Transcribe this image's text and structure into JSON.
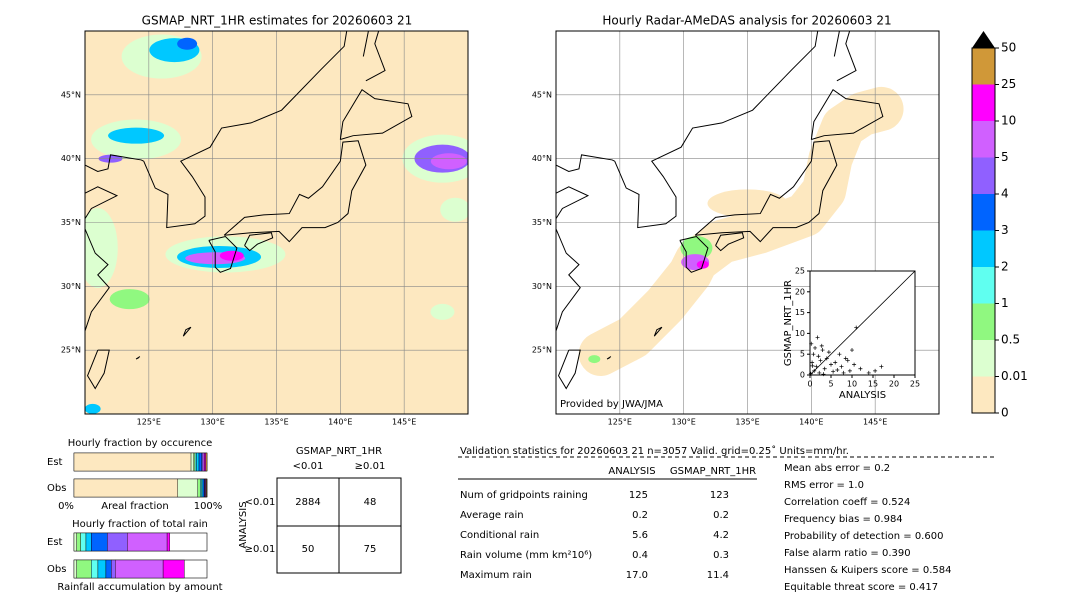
{
  "left_map": {
    "title": "GSMAP_NRT_1HR estimates for 20260603 21",
    "lat_labels": [
      "45°N",
      "40°N",
      "35°N",
      "30°N",
      "25°N"
    ],
    "lon_labels": [
      "125°E",
      "130°E",
      "135°E",
      "140°E",
      "145°E"
    ]
  },
  "right_map": {
    "title": "Hourly Radar-AMeDAS analysis for 20260603 21",
    "lat_labels": [
      "45°N",
      "40°N",
      "35°N",
      "30°N",
      "25°N"
    ],
    "lon_labels": [
      "125°E",
      "130°E",
      "135°E",
      "140°E",
      "145°E"
    ],
    "credit": "Provided by JWA/JMA"
  },
  "colorbar": {
    "levels": [
      0,
      0.01,
      0.5,
      1,
      2,
      3,
      4,
      5,
      10,
      25,
      50
    ],
    "colors": [
      "#fde8c0",
      "#dcffd0",
      "#90f880",
      "#60fff0",
      "#00c8ff",
      "#0064ff",
      "#9060ff",
      "#d060ff",
      "#ff00ff",
      "#d09838"
    ]
  },
  "scatter": {
    "x_label": "ANALYSIS",
    "y_label": "GSMAP_NRT_1HR",
    "xlim": [
      0,
      25
    ],
    "ylim": [
      0,
      25
    ],
    "xticks": [
      0,
      5,
      10,
      15,
      20,
      25
    ],
    "yticks": [
      0,
      5,
      10,
      15,
      20,
      25
    ],
    "x": [
      0.3,
      0.5,
      0.8,
      1.0,
      1.2,
      1.5,
      2.0,
      2.2,
      2.5,
      3.0,
      3.5,
      4.0,
      4.5,
      5.0,
      5.5,
      6.0,
      6.5,
      7.0,
      7.5,
      8.0,
      8.5,
      9.0,
      9.5,
      10.0,
      10.5,
      11.0,
      12.0,
      14.0,
      15.5,
      17.0,
      0.2,
      1.8,
      3.2,
      0.6,
      2.8
    ],
    "y": [
      7.5,
      3.0,
      5.0,
      1.0,
      6.5,
      2.0,
      4.5,
      0.5,
      3.5,
      6.0,
      1.5,
      4.0,
      5.5,
      2.5,
      0.8,
      3.0,
      1.2,
      5.0,
      2.0,
      0.5,
      4.0,
      3.5,
      1.0,
      6.0,
      2.5,
      11.4,
      1.5,
      0.5,
      1.0,
      2.0,
      0.3,
      9.0,
      0.2,
      2.2,
      7.0
    ]
  },
  "occurrence": {
    "title": "Hourly fraction by occurence",
    "rows": [
      "Est",
      "Obs"
    ],
    "est": [
      0.88,
      0.02,
      0.01,
      0.01,
      0.02,
      0.02,
      0.01,
      0.01,
      0.01,
      0.01
    ],
    "obs": [
      0.78,
      0.15,
      0.02,
      0.01,
      0.01,
      0.01,
      0.005,
      0.005,
      0.005,
      0.005
    ],
    "colors": [
      "#fde8c0",
      "#dcffd0",
      "#90f880",
      "#60fff0",
      "#00c8ff",
      "#0064ff",
      "#9060ff",
      "#d060ff",
      "#ff00ff",
      "#d09838"
    ],
    "axis_left": "0%",
    "axis_mid": "Areal fraction",
    "axis_right": "100%"
  },
  "total_rain": {
    "title": "Hourly fraction of total rain",
    "rows": [
      "Est",
      "Obs"
    ],
    "est": [
      0.02,
      0.03,
      0.04,
      0.04,
      0.12,
      0.15,
      0.3,
      0.02,
      0
    ],
    "obs": [
      0.02,
      0.11,
      0.05,
      0.06,
      0.04,
      0.03,
      0.36,
      0.16,
      0
    ],
    "colors": [
      "#dcffd0",
      "#90f880",
      "#60fff0",
      "#00c8ff",
      "#0064ff",
      "#9060ff",
      "#d060ff",
      "#ff00ff",
      "#d09838"
    ],
    "footer": "Rainfall accumulation by amount"
  },
  "contingency": {
    "title": "GSMAP_NRT_1HR",
    "col_labels": [
      "<0.01",
      "≥0.01"
    ],
    "row_title": "ANALYSIS",
    "row_labels": [
      "<0.01",
      "≥0.01"
    ],
    "cells": [
      [
        "2884",
        "48"
      ],
      [
        "50",
        "75"
      ]
    ]
  },
  "validation": {
    "title": "Validation statistics for 20260603 21  n=3057 Valid. grid=0.25˚ Units=mm/hr.",
    "columns": [
      "ANALYSIS",
      "GSMAP_NRT_1HR"
    ],
    "rows": [
      [
        "Num of gridpoints raining",
        "125",
        "123"
      ],
      [
        "Average rain",
        "0.2",
        "0.2"
      ],
      [
        "Conditional rain",
        "5.6",
        "4.2"
      ],
      [
        "Rain volume (mm km²10⁶)",
        "0.4",
        "0.3"
      ],
      [
        "Maximum rain",
        "17.0",
        "11.4"
      ]
    ],
    "scores": [
      "Mean abs error =    0.2",
      "RMS error =    1.0",
      "Correlation coeff =  0.524",
      "Frequency bias =  0.984",
      "Probability of detection =  0.600",
      "False alarm ratio =  0.390",
      "Hanssen & Kuipers score =  0.584",
      "Equitable threat score =  0.417"
    ]
  }
}
